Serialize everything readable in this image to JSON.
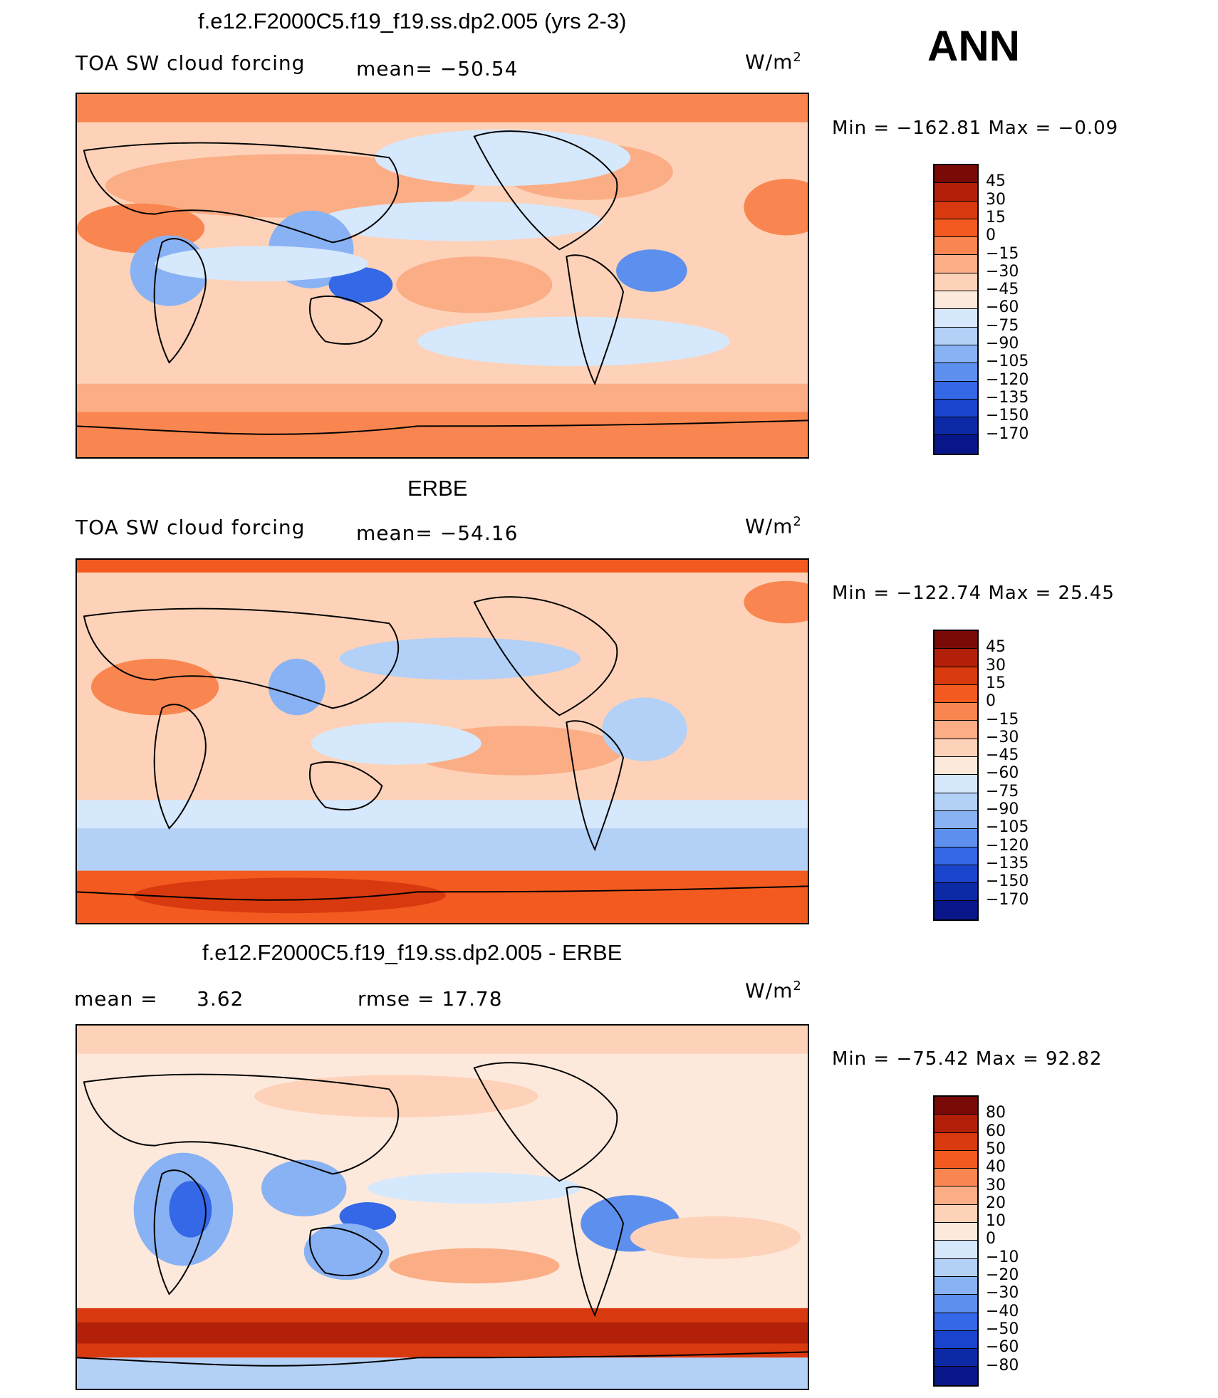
{
  "season": "ANN",
  "panels": [
    {
      "title": "f.e12.F2000C5.f19_f19.ss.dp2.005 (yrs 2-3)",
      "left_label": "TOA SW cloud forcing",
      "stat1": "mean=  −50.54",
      "stat2": "",
      "units": "W/m",
      "units_sup": "2",
      "minmax": "Min  =  −162.81  Max  =    −0.09",
      "field": "model"
    },
    {
      "title": "ERBE",
      "left_label": "TOA SW cloud forcing",
      "stat1": "mean=  −54.16",
      "stat2": "",
      "units": "W/m",
      "units_sup": "2",
      "minmax": "Min  =  −122.74  Max  =    25.45",
      "field": "obs"
    },
    {
      "title": "f.e12.F2000C5.f19_f19.ss.dp2.005 - ERBE",
      "left_label": "mean  =",
      "stat1": "3.62",
      "stat2": "rmse  =    17.78",
      "units": "W/m",
      "units_sup": "2",
      "minmax": "Min  =  −75.42  Max  =    92.82",
      "field": "diff"
    }
  ],
  "colorbars": {
    "absolute": {
      "labels": [
        "45",
        "30",
        "15",
        "0",
        "−15",
        "−30",
        "−45",
        "−60",
        "−75",
        "−90",
        "−105",
        "−120",
        "−135",
        "−150",
        "−170"
      ],
      "colors": [
        "#7a0a08",
        "#b3200a",
        "#d9390f",
        "#f25a20",
        "#f98650",
        "#fbad86",
        "#fdd2b8",
        "#fde9dc",
        "#d6e8fb",
        "#b3d0f7",
        "#88b2f3",
        "#5d90ee",
        "#3568e6",
        "#1a44cc",
        "#0d2aa6",
        "#08168a"
      ]
    },
    "difference": {
      "labels": [
        "80",
        "60",
        "50",
        "40",
        "30",
        "20",
        "10",
        "0",
        "−10",
        "−20",
        "−30",
        "−40",
        "−50",
        "−60",
        "−80"
      ],
      "colors": [
        "#7a0a08",
        "#b3200a",
        "#d9390f",
        "#f25a20",
        "#f98650",
        "#fbad86",
        "#fdd2b8",
        "#fde9dc",
        "#d6e8fb",
        "#b3d0f7",
        "#88b2f3",
        "#5d90ee",
        "#3568e6",
        "#1a44cc",
        "#0d2aa6",
        "#08168a"
      ]
    }
  }
}
